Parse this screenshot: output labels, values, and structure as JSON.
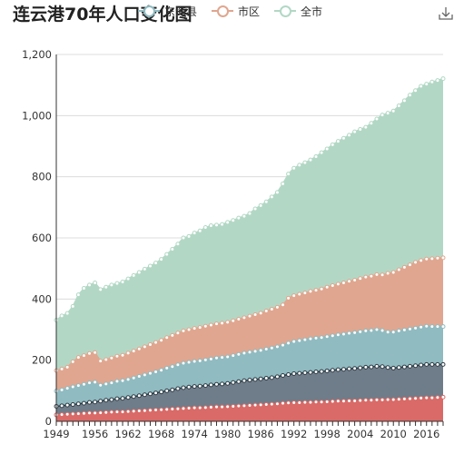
{
  "title": "连云港70年人口变化图",
  "toolbox": {
    "icon": "download-icon",
    "label": "save-as-image"
  },
  "chart_data": {
    "type": "area",
    "stacked": true,
    "title": "连云港70年人口变化图",
    "xlabel": "",
    "ylabel": "",
    "ylim": [
      0,
      1200
    ],
    "yticks": [
      0,
      200,
      400,
      600,
      800,
      1000,
      1200
    ],
    "ytick_labels": [
      "0",
      "200",
      "400",
      "600",
      "800",
      "1,000",
      "1,200"
    ],
    "xtick_labels": [
      "1949",
      "1956",
      "1962",
      "1968",
      "1974",
      "1980",
      "1986",
      "1992",
      "1998",
      "2004",
      "2010",
      "2016"
    ],
    "xtick_years": [
      1949,
      1956,
      1962,
      1968,
      1974,
      1980,
      1986,
      1992,
      1998,
      2004,
      2010,
      2016
    ],
    "grid": true,
    "legend_position": "top",
    "x": [
      1949,
      1950,
      1951,
      1952,
      1953,
      1954,
      1955,
      1956,
      1957,
      1958,
      1959,
      1960,
      1961,
      1962,
      1963,
      1964,
      1965,
      1966,
      1967,
      1968,
      1969,
      1970,
      1971,
      1972,
      1973,
      1974,
      1975,
      1976,
      1977,
      1978,
      1979,
      1980,
      1981,
      1982,
      1983,
      1984,
      1985,
      1986,
      1987,
      1988,
      1989,
      1990,
      1991,
      1992,
      1993,
      1994,
      1995,
      1996,
      1997,
      1998,
      1999,
      2000,
      2001,
      2002,
      2003,
      2004,
      2005,
      2006,
      2007,
      2008,
      2009,
      2010,
      2011,
      2012,
      2013,
      2014,
      2015,
      2016,
      2017,
      2018,
      2019
    ],
    "series": [
      {
        "name": "",
        "color": "#d96a67",
        "values": [
          21,
          22,
          23,
          24,
          25,
          26,
          27,
          27,
          28,
          29,
          30,
          31,
          31,
          32,
          33,
          34,
          35,
          36,
          37,
          38,
          39,
          40,
          41,
          42,
          43,
          44,
          44,
          45,
          46,
          47,
          47,
          48,
          49,
          50,
          51,
          52,
          53,
          54,
          55,
          56,
          57,
          59,
          60,
          61,
          61,
          62,
          62,
          63,
          63,
          64,
          65,
          66,
          66,
          67,
          67,
          68,
          69,
          69,
          70,
          70,
          71,
          71,
          72,
          73,
          74,
          75,
          76,
          77,
          77,
          78,
          79
        ]
      },
      {
        "name": "",
        "color": "#6e7d89",
        "values": [
          28,
          29,
          30,
          31,
          32,
          33,
          35,
          36,
          38,
          40,
          41,
          43,
          44,
          46,
          48,
          50,
          52,
          54,
          56,
          58,
          61,
          63,
          66,
          68,
          69,
          70,
          71,
          72,
          73,
          74,
          75,
          76,
          78,
          80,
          82,
          83,
          84,
          85,
          86,
          87,
          89,
          91,
          93,
          95,
          96,
          97,
          98,
          99,
          100,
          101,
          102,
          103,
          104,
          105,
          106,
          107,
          108,
          109,
          110,
          109,
          105,
          103,
          104,
          105,
          106,
          107,
          108,
          109,
          109,
          108,
          107
        ]
      },
      {
        "name": "东海县",
        "color": "#8fbbc1",
        "values": [
          50,
          52,
          55,
          58,
          60,
          62,
          64,
          65,
          52,
          53,
          55,
          57,
          58,
          59,
          61,
          63,
          65,
          67,
          69,
          71,
          74,
          76,
          78,
          80,
          81,
          82,
          83,
          84,
          85,
          86,
          87,
          87,
          88,
          89,
          90,
          91,
          92,
          93,
          95,
          97,
          98,
          99,
          103,
          105,
          107,
          108,
          110,
          110,
          111,
          112,
          113,
          114,
          115,
          116,
          117,
          118,
          119,
          119,
          120,
          118,
          116,
          118,
          120,
          121,
          122,
          123,
          124,
          125,
          124,
          124,
          124
        ]
      },
      {
        "name": "市区",
        "color": "#e0a68f",
        "values": [
          67,
          68,
          69,
          82,
          92,
          94,
          96,
          97,
          79,
          80,
          81,
          82,
          83,
          86,
          88,
          90,
          92,
          94,
          96,
          98,
          100,
          102,
          104,
          106,
          107,
          108,
          109,
          110,
          111,
          112,
          112,
          113,
          114,
          115,
          116,
          118,
          120,
          122,
          125,
          127,
          129,
          132,
          147,
          150,
          152,
          153,
          155,
          157,
          159,
          162,
          164,
          166,
          168,
          170,
          172,
          174,
          176,
          178,
          180,
          182,
          192,
          195,
          200,
          205,
          210,
          215,
          218,
          220,
          222,
          224,
          225
        ]
      },
      {
        "name": "全市",
        "color": "#b2d8c5",
        "values": [
          165,
          174,
          176,
          181,
          205,
          220,
          224,
          228,
          234,
          237,
          239,
          238,
          240,
          243,
          247,
          250,
          254,
          257,
          260,
          265,
          272,
          282,
          291,
          304,
          305,
          312,
          316,
          323,
          325,
          323,
          323,
          327,
          328,
          331,
          332,
          336,
          346,
          352,
          357,
          367,
          376,
          396,
          406,
          417,
          422,
          426,
          430,
          437,
          446,
          452,
          461,
          467,
          473,
          478,
          485,
          488,
          490,
          500,
          509,
          523,
          524,
          528,
          536,
          545,
          555,
          562,
          570,
          572,
          578,
          581,
          586
        ]
      }
    ]
  }
}
